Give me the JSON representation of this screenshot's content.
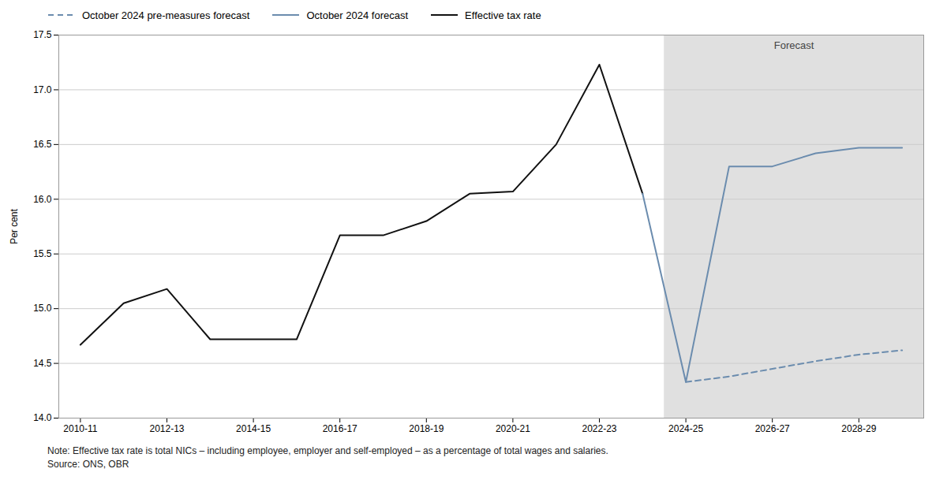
{
  "chart_data": {
    "type": "line",
    "ylabel": "Per cent",
    "categories": [
      "2010-11",
      null,
      "2012-13",
      null,
      "2014-15",
      null,
      "2016-17",
      null,
      "2018-19",
      null,
      "2020-21",
      null,
      "2022-23",
      null,
      "2024-25",
      null,
      "2026-27",
      null,
      "2028-29",
      null
    ],
    "series": [
      {
        "name": "Effective tax rate",
        "color": "#111111",
        "line_style": "solid",
        "values": [
          14.67,
          15.05,
          15.18,
          14.72,
          14.72,
          14.72,
          15.67,
          15.67,
          15.8,
          16.05,
          16.07,
          16.5,
          17.23,
          16.05,
          null,
          null,
          null,
          null,
          null,
          null
        ]
      },
      {
        "name": "October 2024 forecast",
        "color": "#6b8cae",
        "line_style": "solid",
        "values": [
          null,
          null,
          null,
          null,
          null,
          null,
          null,
          null,
          null,
          null,
          null,
          null,
          null,
          16.05,
          14.33,
          16.3,
          16.3,
          16.42,
          16.47,
          16.47
        ]
      },
      {
        "name": "October 2024 pre-measures forecast",
        "color": "#6b8cae",
        "line_style": "dashed",
        "values": [
          null,
          null,
          null,
          null,
          null,
          null,
          null,
          null,
          null,
          null,
          null,
          null,
          null,
          null,
          14.33,
          14.38,
          14.45,
          14.52,
          14.58,
          14.62
        ]
      }
    ],
    "ylim": [
      14.0,
      17.5
    ],
    "yticks": [
      {
        "value": 14.0,
        "label": "14.0"
      },
      14.5,
      {
        "value": 15.0,
        "label": "15.0"
      },
      15.5,
      {
        "value": 16.0,
        "label": "16.0"
      },
      16.5,
      {
        "value": 17.0,
        "label": "17.0"
      },
      17.5
    ],
    "grid": true,
    "legend": "upper left",
    "forecast_region": {
      "start": "2024-25",
      "label": "Forecast",
      "color": "#e0e0e0"
    },
    "note": "Note: Effective tax rate is total NICs – including employee, employer and self-employed – as a percentage of total wages and salaries.",
    "source": "Source: ONS, OBR"
  }
}
